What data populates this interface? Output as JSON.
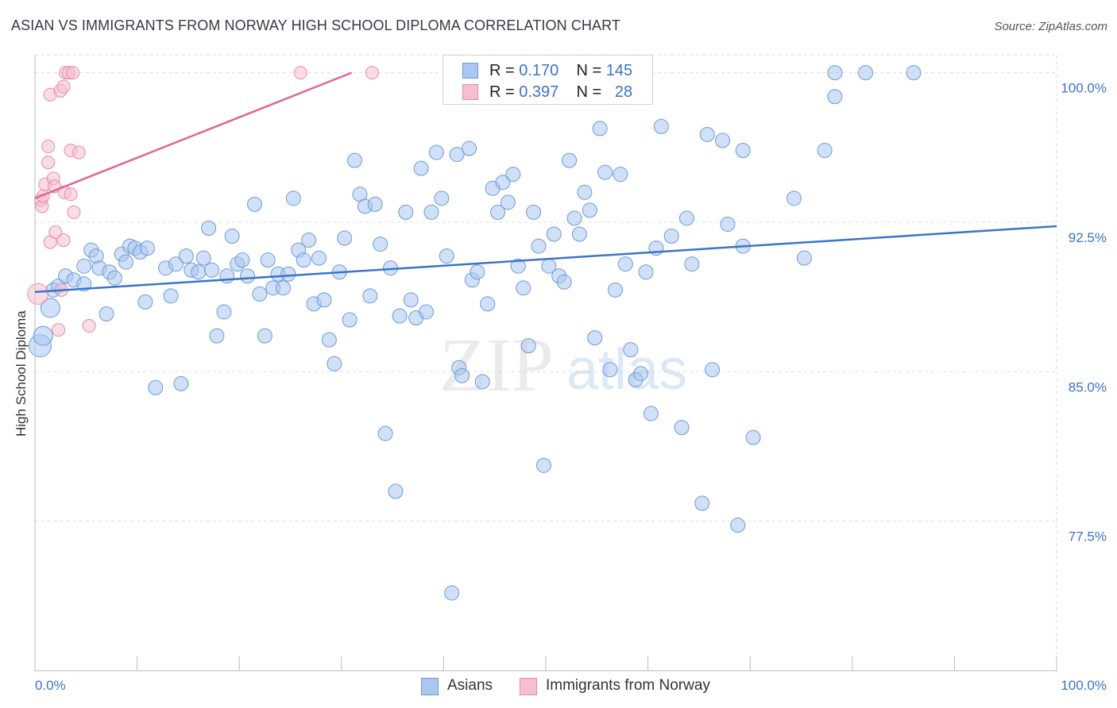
{
  "header": {
    "title": "ASIAN VS IMMIGRANTS FROM NORWAY HIGH SCHOOL DIPLOMA CORRELATION CHART",
    "source": "Source: ZipAtlas.com"
  },
  "watermark": {
    "zip": "ZIP",
    "atlas": "atlas"
  },
  "legend": {
    "r_label": "R =",
    "n_label": "N =",
    "asians": {
      "r": "0.170",
      "n": "145"
    },
    "norway": {
      "r": "0.397",
      "n": "28"
    }
  },
  "bottom_legend": {
    "asians": "Asians",
    "norway": "Immigrants from Norway"
  },
  "colors": {
    "asians_fill": "#a9c7ef",
    "asians_stroke": "#6f9ad8",
    "asians_line": "#3a74cc",
    "norway_fill": "#f6bfd0",
    "norway_stroke": "#e88aaa",
    "norway_line": "#e0668f",
    "tick_text": "#3b73c9",
    "grid": "#dddddd"
  },
  "chart_data": {
    "type": "scatter",
    "title": "ASIAN VS IMMIGRANTS FROM NORWAY HIGH SCHOOL DIPLOMA CORRELATION CHART",
    "xlabel": "",
    "ylabel": "High School Diploma",
    "xlim": [
      0,
      100
    ],
    "ylim": [
      70.0,
      100.9
    ],
    "x_tick_labels": [
      "0.0%",
      "100.0%"
    ],
    "y_ticks": [
      77.5,
      85.0,
      92.5,
      100.0
    ],
    "y_tick_labels": [
      "77.5%",
      "85.0%",
      "92.5%",
      "100.0%"
    ],
    "grid": true,
    "series": [
      {
        "name": "Asians",
        "trend": {
          "x": [
            0,
            100
          ],
          "y": [
            89.0,
            92.3
          ]
        },
        "points": [
          [
            0.5,
            86.3
          ],
          [
            0.8,
            86.8
          ],
          [
            1.5,
            88.2
          ],
          [
            1.8,
            89.1
          ],
          [
            2.3,
            89.3
          ],
          [
            3.0,
            89.8
          ],
          [
            3.8,
            89.6
          ],
          [
            4.8,
            90.3
          ],
          [
            4.8,
            89.4
          ],
          [
            5.5,
            91.1
          ],
          [
            6.0,
            90.8
          ],
          [
            6.3,
            90.2
          ],
          [
            7.0,
            87.9
          ],
          [
            7.3,
            90.0
          ],
          [
            7.8,
            89.7
          ],
          [
            8.5,
            90.9
          ],
          [
            8.9,
            90.5
          ],
          [
            9.3,
            91.3
          ],
          [
            9.8,
            91.2
          ],
          [
            10.3,
            91.0
          ],
          [
            11.0,
            91.2
          ],
          [
            10.8,
            88.5
          ],
          [
            11.8,
            84.2
          ],
          [
            12.8,
            90.2
          ],
          [
            13.3,
            88.8
          ],
          [
            13.8,
            90.4
          ],
          [
            14.3,
            84.4
          ],
          [
            14.8,
            90.8
          ],
          [
            15.3,
            90.1
          ],
          [
            16.0,
            90.0
          ],
          [
            16.5,
            90.7
          ],
          [
            17.3,
            90.1
          ],
          [
            17.0,
            92.2
          ],
          [
            17.8,
            86.8
          ],
          [
            18.5,
            88.0
          ],
          [
            18.8,
            89.8
          ],
          [
            19.3,
            91.8
          ],
          [
            19.8,
            90.4
          ],
          [
            20.3,
            90.6
          ],
          [
            20.8,
            89.8
          ],
          [
            21.5,
            93.4
          ],
          [
            22.0,
            88.9
          ],
          [
            22.5,
            86.8
          ],
          [
            22.8,
            90.6
          ],
          [
            23.3,
            89.2
          ],
          [
            23.8,
            89.9
          ],
          [
            24.3,
            89.2
          ],
          [
            24.8,
            89.9
          ],
          [
            25.3,
            93.7
          ],
          [
            25.8,
            91.1
          ],
          [
            26.3,
            90.6
          ],
          [
            26.8,
            91.6
          ],
          [
            27.3,
            88.4
          ],
          [
            27.8,
            90.7
          ],
          [
            28.3,
            88.6
          ],
          [
            28.8,
            86.6
          ],
          [
            29.3,
            85.4
          ],
          [
            29.8,
            90.0
          ],
          [
            30.3,
            91.7
          ],
          [
            30.8,
            87.6
          ],
          [
            31.3,
            95.6
          ],
          [
            31.8,
            93.9
          ],
          [
            32.3,
            93.3
          ],
          [
            32.8,
            88.8
          ],
          [
            33.3,
            93.4
          ],
          [
            33.8,
            91.4
          ],
          [
            34.3,
            81.9
          ],
          [
            34.8,
            90.2
          ],
          [
            35.3,
            79.0
          ],
          [
            35.7,
            87.8
          ],
          [
            36.3,
            93.0
          ],
          [
            36.8,
            88.6
          ],
          [
            37.3,
            87.7
          ],
          [
            37.8,
            95.2
          ],
          [
            38.3,
            88.0
          ],
          [
            38.8,
            93.0
          ],
          [
            39.3,
            96.0
          ],
          [
            39.8,
            93.7
          ],
          [
            40.3,
            90.8
          ],
          [
            40.8,
            73.9
          ],
          [
            41.3,
            95.9
          ],
          [
            41.5,
            85.2
          ],
          [
            41.8,
            84.8
          ],
          [
            42.5,
            96.2
          ],
          [
            42.8,
            89.6
          ],
          [
            43.3,
            90.0
          ],
          [
            43.8,
            84.5
          ],
          [
            44.3,
            88.4
          ],
          [
            44.8,
            94.2
          ],
          [
            45.3,
            93.0
          ],
          [
            45.8,
            94.5
          ],
          [
            46.3,
            93.5
          ],
          [
            46.8,
            94.9
          ],
          [
            47.3,
            90.3
          ],
          [
            47.8,
            89.2
          ],
          [
            48.3,
            86.3
          ],
          [
            48.8,
            93.0
          ],
          [
            49.3,
            91.3
          ],
          [
            49.8,
            80.3
          ],
          [
            50.3,
            90.3
          ],
          [
            50.8,
            91.9
          ],
          [
            51.3,
            89.8
          ],
          [
            51.8,
            89.5
          ],
          [
            52.3,
            95.6
          ],
          [
            52.8,
            92.7
          ],
          [
            53.3,
            91.9
          ],
          [
            53.8,
            94.0
          ],
          [
            54.3,
            93.1
          ],
          [
            54.8,
            86.7
          ],
          [
            55.3,
            97.2
          ],
          [
            55.8,
            95.0
          ],
          [
            56.3,
            85.1
          ],
          [
            56.8,
            89.1
          ],
          [
            57.3,
            94.9
          ],
          [
            57.8,
            90.4
          ],
          [
            58.3,
            86.1
          ],
          [
            58.8,
            84.6
          ],
          [
            59.3,
            84.9
          ],
          [
            59.8,
            90.0
          ],
          [
            60.3,
            82.9
          ],
          [
            60.8,
            91.2
          ],
          [
            61.3,
            97.3
          ],
          [
            62.3,
            91.8
          ],
          [
            63.3,
            82.2
          ],
          [
            63.8,
            92.7
          ],
          [
            64.3,
            90.4
          ],
          [
            65.3,
            78.4
          ],
          [
            65.8,
            96.9
          ],
          [
            66.3,
            85.1
          ],
          [
            67.3,
            96.6
          ],
          [
            67.8,
            92.4
          ],
          [
            68.8,
            77.3
          ],
          [
            69.3,
            91.3
          ],
          [
            69.3,
            96.1
          ],
          [
            70.3,
            81.7
          ],
          [
            74.3,
            93.7
          ],
          [
            75.3,
            90.7
          ],
          [
            77.3,
            96.1
          ],
          [
            78.3,
            98.8
          ],
          [
            78.3,
            100.0
          ],
          [
            81.3,
            100.0
          ],
          [
            86.0,
            100.0
          ]
        ]
      },
      {
        "name": "Immigrants from Norway",
        "trend": {
          "x": [
            0,
            31
          ],
          "y": [
            93.7,
            100.0
          ]
        },
        "points": [
          [
            0.3,
            88.9
          ],
          [
            0.6,
            93.6
          ],
          [
            0.7,
            93.3
          ],
          [
            0.8,
            93.8
          ],
          [
            1.0,
            94.4
          ],
          [
            1.3,
            96.3
          ],
          [
            1.3,
            95.5
          ],
          [
            1.5,
            91.5
          ],
          [
            1.5,
            98.9
          ],
          [
            1.8,
            94.7
          ],
          [
            1.9,
            94.3
          ],
          [
            2.0,
            92.0
          ],
          [
            2.3,
            87.1
          ],
          [
            2.5,
            99.1
          ],
          [
            2.6,
            89.1
          ],
          [
            2.8,
            99.3
          ],
          [
            2.9,
            94.0
          ],
          [
            3.0,
            100.0
          ],
          [
            3.3,
            100.0
          ],
          [
            3.5,
            93.9
          ],
          [
            3.5,
            96.1
          ],
          [
            3.8,
            93.0
          ],
          [
            4.3,
            96.0
          ],
          [
            5.3,
            87.3
          ],
          [
            26.0,
            100.0
          ],
          [
            33.0,
            100.0
          ],
          [
            3.7,
            100.0
          ],
          [
            2.8,
            91.6
          ]
        ]
      }
    ]
  }
}
